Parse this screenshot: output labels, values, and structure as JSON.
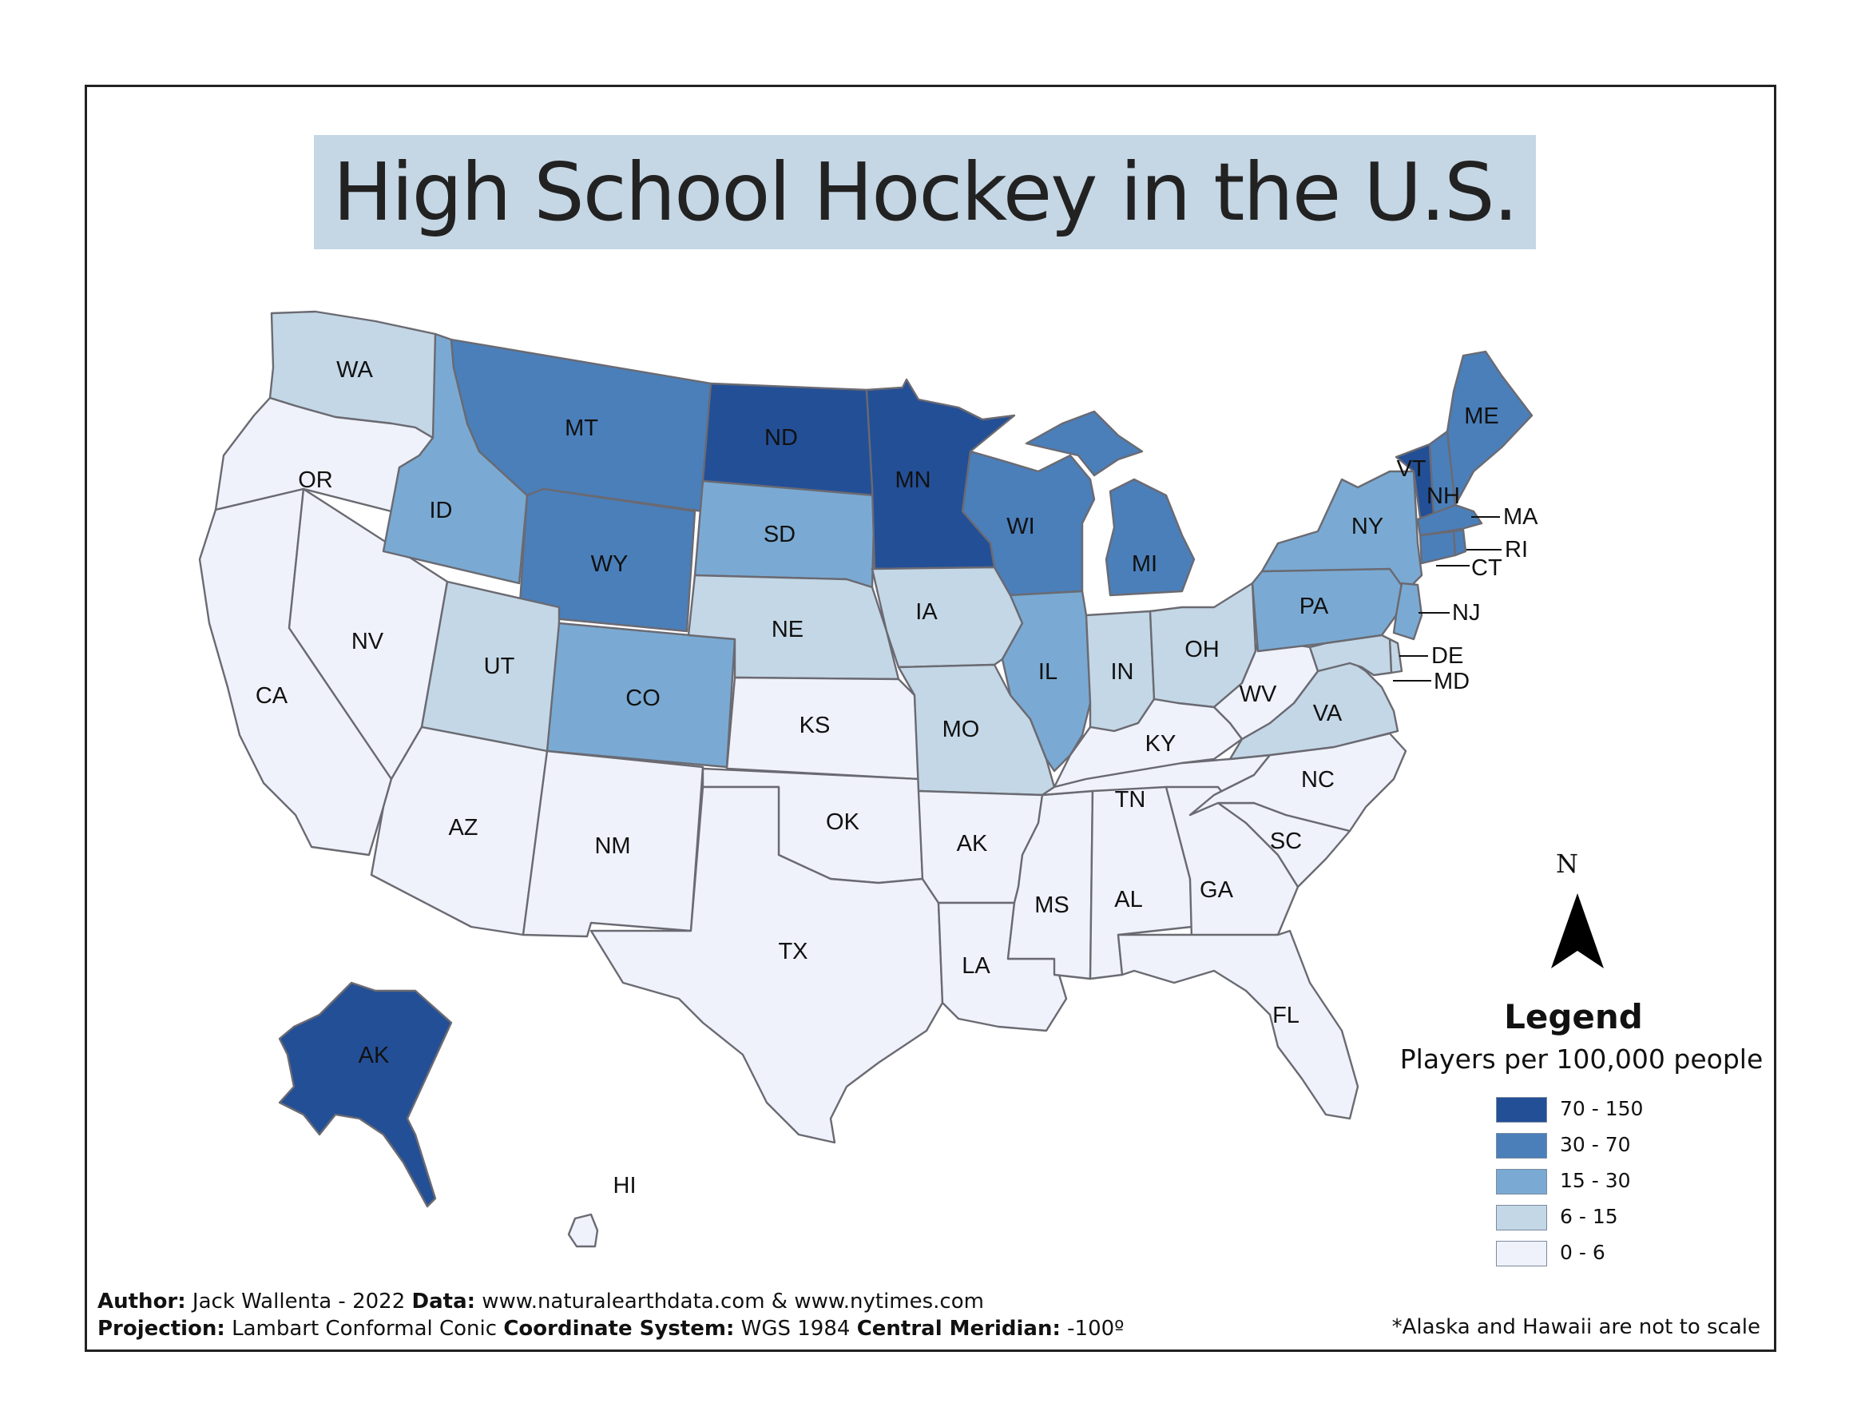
{
  "title": "High School Hockey in the U.S.",
  "legend": {
    "title": "Legend",
    "subtitle": "Players per 100,000 people",
    "classes": [
      {
        "label": "70 - 150",
        "color": "#234f96"
      },
      {
        "label": "30 - 70",
        "color": "#4a7fba"
      },
      {
        "label": "15 - 30",
        "color": "#7aaad3"
      },
      {
        "label": "6 - 15",
        "color": "#c4d7e6"
      },
      {
        "label": "0 - 6",
        "color": "#f0f2fb"
      }
    ]
  },
  "north_arrow": {
    "label": "N"
  },
  "credits": {
    "author_key": "Author:",
    "author_val": "Jack Wallenta - 2022",
    "data_key": "Data:",
    "data_val": "www.naturalearthdata.com & www.nytimes.com",
    "projection_key": "Projection:",
    "projection_val": "Lambart Conformal Conic",
    "coord_key": "Coordinate System:",
    "coord_val": "WGS 1984",
    "meridian_key": "Central Meridian:",
    "meridian_val": "-100º"
  },
  "note": "*Alaska and Hawaii are not to scale",
  "states": {
    "WA": {
      "label": "WA",
      "class": "6 - 15"
    },
    "OR": {
      "label": "OR",
      "class": "0 - 6"
    },
    "CA": {
      "label": "CA",
      "class": "0 - 6"
    },
    "NV": {
      "label": "NV",
      "class": "0 - 6"
    },
    "ID": {
      "label": "ID",
      "class": "15 - 30"
    },
    "MT": {
      "label": "MT",
      "class": "30 - 70"
    },
    "WY": {
      "label": "WY",
      "class": "30 - 70"
    },
    "UT": {
      "label": "UT",
      "class": "6 - 15"
    },
    "CO": {
      "label": "CO",
      "class": "15 - 30"
    },
    "AZ": {
      "label": "AZ",
      "class": "0 - 6"
    },
    "NM": {
      "label": "NM",
      "class": "0 - 6"
    },
    "ND": {
      "label": "ND",
      "class": "70 - 150"
    },
    "SD": {
      "label": "SD",
      "class": "15 - 30"
    },
    "NE": {
      "label": "NE",
      "class": "6 - 15"
    },
    "KS": {
      "label": "KS",
      "class": "0 - 6"
    },
    "OK": {
      "label": "OK",
      "class": "0 - 6"
    },
    "TX": {
      "label": "TX",
      "class": "0 - 6"
    },
    "MN": {
      "label": "MN",
      "class": "70 - 150"
    },
    "IA": {
      "label": "IA",
      "class": "6 - 15"
    },
    "MO": {
      "label": "MO",
      "class": "6 - 15"
    },
    "AR": {
      "label": "AK",
      "class": "0 - 6"
    },
    "LA": {
      "label": "LA",
      "class": "0 - 6"
    },
    "WI": {
      "label": "WI",
      "class": "30 - 70"
    },
    "IL": {
      "label": "IL",
      "class": "15 - 30"
    },
    "MS": {
      "label": "MS",
      "class": "0 - 6"
    },
    "MI": {
      "label": "MI",
      "class": "30 - 70"
    },
    "IN": {
      "label": "IN",
      "class": "6 - 15"
    },
    "OH": {
      "label": "OH",
      "class": "6 - 15"
    },
    "KY": {
      "label": "KY",
      "class": "0 - 6"
    },
    "TN": {
      "label": "TN",
      "class": "0 - 6"
    },
    "AL": {
      "label": "AL",
      "class": "0 - 6"
    },
    "GA": {
      "label": "GA",
      "class": "0 - 6"
    },
    "FL": {
      "label": "FL",
      "class": "0 - 6"
    },
    "SC": {
      "label": "SC",
      "class": "0 - 6"
    },
    "NC": {
      "label": "NC",
      "class": "0 - 6"
    },
    "VA": {
      "label": "VA",
      "class": "6 - 15"
    },
    "WV": {
      "label": "WV",
      "class": "0 - 6"
    },
    "PA": {
      "label": "PA",
      "class": "15 - 30"
    },
    "NY": {
      "label": "NY",
      "class": "15 - 30"
    },
    "VT": {
      "label": "VT",
      "class": "70 - 150"
    },
    "NH": {
      "label": "NH",
      "class": "30 - 70"
    },
    "ME": {
      "label": "ME",
      "class": "30 - 70"
    },
    "MA": {
      "label": "MA",
      "class": "30 - 70"
    },
    "RI": {
      "label": "RI",
      "class": "30 - 70"
    },
    "CT": {
      "label": "CT",
      "class": "30 - 70"
    },
    "NJ": {
      "label": "NJ",
      "class": "15 - 30"
    },
    "DE": {
      "label": "DE",
      "class": "6 - 15"
    },
    "MD": {
      "label": "MD",
      "class": "6 - 15"
    },
    "AK": {
      "label": "AK",
      "class": "70 - 150"
    },
    "HI": {
      "label": "HI",
      "class": "0 - 6"
    }
  }
}
